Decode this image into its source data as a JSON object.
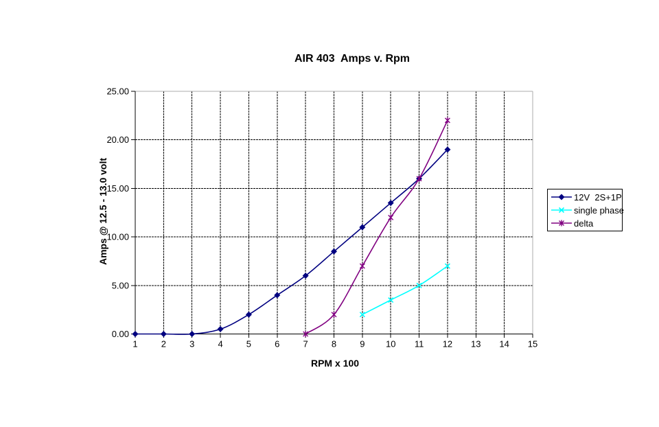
{
  "chart_data": {
    "type": "line",
    "title": "AIR 403  Amps v. Rpm",
    "xlabel": "RPM x 100",
    "ylabel": "Amps @ 12.5 - 13.0 volt",
    "xlim": [
      1,
      15
    ],
    "ylim": [
      0,
      25
    ],
    "xticks": [
      1,
      2,
      3,
      4,
      5,
      6,
      7,
      8,
      9,
      10,
      11,
      12,
      13,
      14,
      15
    ],
    "yticks": [
      0,
      5,
      10,
      15,
      20,
      25
    ],
    "ytick_labels": [
      "0.00",
      "5.00",
      "10.00",
      "15.00",
      "20.00",
      "25.00"
    ],
    "grid": true,
    "legend_position": "right",
    "colors": {
      "background": "#ffffff",
      "axis": "#000000",
      "gridline": "#000000",
      "plot_border": "#ababab",
      "legend_border": "#000000"
    },
    "series": [
      {
        "name": "12V  2S+1P",
        "color": "#000080",
        "marker": "diamond",
        "smoothed": true,
        "points": [
          [
            1,
            0
          ],
          [
            2,
            0
          ],
          [
            3,
            0
          ],
          [
            4,
            0.5
          ],
          [
            5,
            2
          ],
          [
            6,
            4
          ],
          [
            7,
            6
          ],
          [
            8,
            8.5
          ],
          [
            9,
            11
          ],
          [
            10,
            13.5
          ],
          [
            11,
            16
          ],
          [
            12,
            19
          ]
        ]
      },
      {
        "name": "single phase",
        "color": "#00ffff",
        "marker": "x",
        "smoothed": true,
        "points": [
          [
            9,
            2
          ],
          [
            10,
            3.5
          ],
          [
            11,
            5
          ],
          [
            12,
            7
          ]
        ]
      },
      {
        "name": "delta",
        "color": "#800080",
        "marker": "star",
        "smoothed": true,
        "points": [
          [
            7,
            0
          ],
          [
            8,
            2
          ],
          [
            9,
            7
          ],
          [
            10,
            12
          ],
          [
            11,
            16
          ],
          [
            12,
            22
          ]
        ]
      }
    ]
  }
}
